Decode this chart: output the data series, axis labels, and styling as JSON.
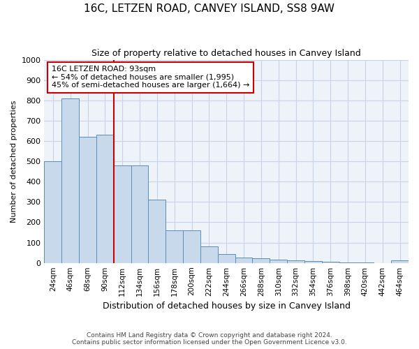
{
  "title": "16C, LETZEN ROAD, CANVEY ISLAND, SS8 9AW",
  "subtitle": "Size of property relative to detached houses in Canvey Island",
  "xlabel": "Distribution of detached houses by size in Canvey Island",
  "ylabel": "Number of detached properties",
  "footer_line1": "Contains HM Land Registry data © Crown copyright and database right 2024.",
  "footer_line2": "Contains public sector information licensed under the Open Government Licence v3.0.",
  "categories": [
    "24sqm",
    "46sqm",
    "68sqm",
    "90sqm",
    "112sqm",
    "134sqm",
    "156sqm",
    "178sqm",
    "200sqm",
    "222sqm",
    "244sqm",
    "266sqm",
    "288sqm",
    "310sqm",
    "332sqm",
    "354sqm",
    "376sqm",
    "398sqm",
    "420sqm",
    "442sqm",
    "464sqm"
  ],
  "values": [
    500,
    810,
    620,
    630,
    480,
    480,
    310,
    160,
    160,
    80,
    42,
    25,
    22,
    15,
    12,
    8,
    5,
    3,
    2,
    0,
    12
  ],
  "bar_color": "#c9d9ec",
  "bar_edge_color": "#5b8db8",
  "annotation_line1": "16C LETZEN ROAD: 93sqm",
  "annotation_line2": "← 54% of detached houses are smaller (1,995)",
  "annotation_line3": "45% of semi-detached houses are larger (1,664) →",
  "vline_color": "#cc0000",
  "vline_pos": 3.5,
  "ylim": [
    0,
    1000
  ],
  "yticks": [
    0,
    100,
    200,
    300,
    400,
    500,
    600,
    700,
    800,
    900,
    1000
  ],
  "annotation_box_facecolor": "#ffffff",
  "annotation_box_edgecolor": "#cc0000",
  "grid_color": "#c8d4e8",
  "bg_color": "#eef2f9",
  "title_fontsize": 11,
  "subtitle_fontsize": 9,
  "ylabel_fontsize": 8,
  "xlabel_fontsize": 9,
  "footer_fontsize": 6.5,
  "tick_fontsize": 7.5,
  "ytick_fontsize": 8
}
